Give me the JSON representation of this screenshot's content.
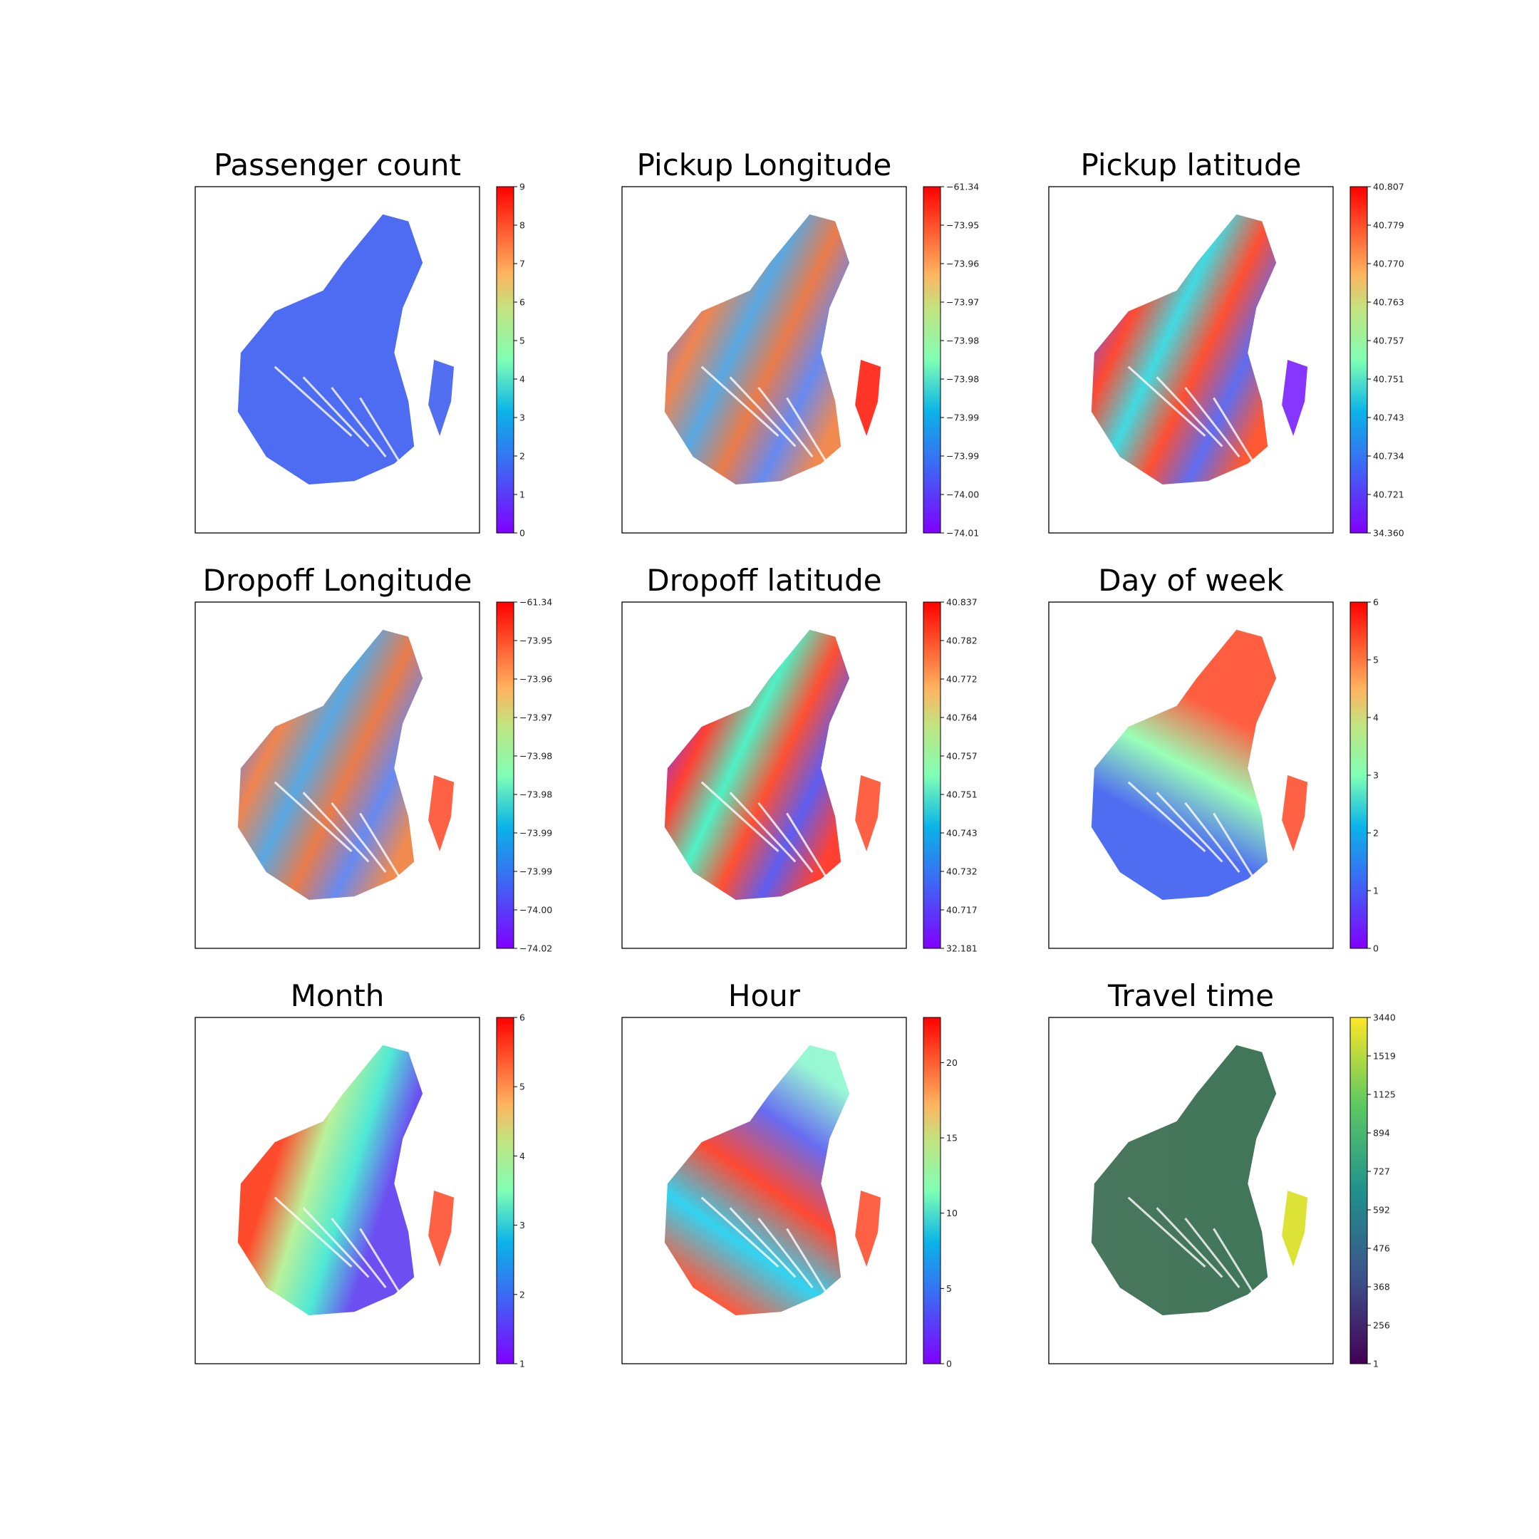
{
  "chart_data": [
    {
      "type": "scatter",
      "title": "Passenger count",
      "colormap": "rainbow",
      "colorbar_ticks": [
        "0",
        "1",
        "2",
        "3",
        "4",
        "5",
        "6",
        "7",
        "8",
        "9"
      ],
      "grid": false,
      "axes_ticks": false
    },
    {
      "type": "scatter",
      "title": "Pickup Longitude",
      "colormap": "rainbow",
      "colorbar_ticks": [
        "−74.01",
        "−74.00",
        "−73.99",
        "−73.99",
        "−73.98",
        "−73.98",
        "−73.97",
        "−73.96",
        "−73.95",
        "−61.34"
      ],
      "grid": false,
      "axes_ticks": false
    },
    {
      "type": "scatter",
      "title": "Pickup latitude",
      "colormap": "rainbow",
      "colorbar_ticks": [
        "34.360",
        "40.721",
        "40.734",
        "40.743",
        "40.751",
        "40.757",
        "40.763",
        "40.770",
        "40.779",
        "40.807"
      ],
      "grid": false,
      "axes_ticks": false
    },
    {
      "type": "scatter",
      "title": "Dropoff Longitude",
      "colormap": "rainbow",
      "colorbar_ticks": [
        "−74.02",
        "−74.00",
        "−73.99",
        "−73.99",
        "−73.98",
        "−73.98",
        "−73.97",
        "−73.96",
        "−73.95",
        "−61.34"
      ],
      "grid": false,
      "axes_ticks": false
    },
    {
      "type": "scatter",
      "title": "Dropoff latitude",
      "colormap": "rainbow",
      "colorbar_ticks": [
        "32.181",
        "40.717",
        "40.732",
        "40.743",
        "40.751",
        "40.757",
        "40.764",
        "40.772",
        "40.782",
        "40.837"
      ],
      "grid": false,
      "axes_ticks": false
    },
    {
      "type": "scatter",
      "title": "Day of week",
      "colormap": "rainbow",
      "colorbar_ticks": [
        "0",
        "1",
        "2",
        "3",
        "4",
        "5",
        "6"
      ],
      "colorbar_range": [
        0,
        6
      ],
      "grid": false,
      "axes_ticks": false
    },
    {
      "type": "scatter",
      "title": "Month",
      "colormap": "rainbow",
      "colorbar_ticks": [
        "1",
        "2",
        "3",
        "4",
        "5",
        "6"
      ],
      "colorbar_range": [
        1,
        6
      ],
      "grid": false,
      "axes_ticks": false
    },
    {
      "type": "scatter",
      "title": "Hour",
      "colormap": "rainbow",
      "colorbar_ticks": [
        "0",
        "5",
        "10",
        "15",
        "20"
      ],
      "colorbar_range": [
        0,
        23
      ],
      "grid": false,
      "axes_ticks": false
    },
    {
      "type": "scatter",
      "title": "Travel time",
      "colormap": "viridis",
      "colorbar_ticks": [
        "1",
        "256",
        "368",
        "476",
        "592",
        "727",
        "894",
        "1125",
        "1519",
        "3440"
      ],
      "grid": false,
      "axes_ticks": false
    }
  ]
}
